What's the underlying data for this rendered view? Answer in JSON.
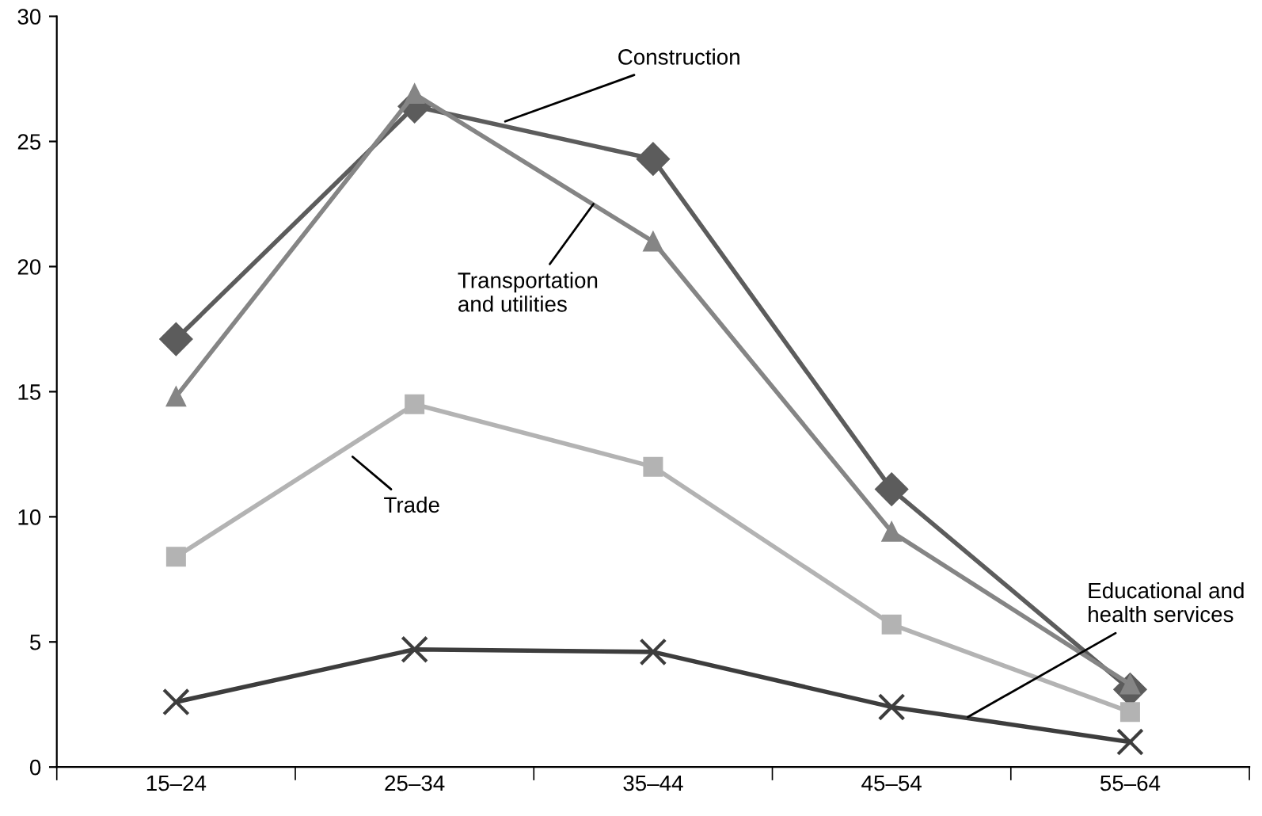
{
  "chart_data": {
    "type": "line",
    "categories": [
      "15–24",
      "25–34",
      "35–44",
      "45–54",
      "55–64"
    ],
    "ylim": [
      0,
      30
    ],
    "yticks": [
      0,
      5,
      10,
      15,
      20,
      25,
      30
    ],
    "grid": false,
    "legend": false,
    "series": [
      {
        "name": "Construction",
        "color": "#5c5c5c",
        "marker": "diamond",
        "values": [
          17.1,
          26.4,
          24.3,
          11.1,
          3.1
        ]
      },
      {
        "name": "Transportation and utilities",
        "color": "#858585",
        "marker": "triangle",
        "values": [
          14.8,
          26.9,
          21.0,
          9.4,
          3.3
        ]
      },
      {
        "name": "Trade",
        "color": "#b3b3b3",
        "marker": "square",
        "values": [
          8.4,
          14.5,
          12.0,
          5.7,
          2.2
        ]
      },
      {
        "name": "Educational and health services",
        "color": "#3d3d3d",
        "marker": "cross",
        "values": [
          2.6,
          4.7,
          4.6,
          2.4,
          1.0
        ]
      }
    ]
  }
}
